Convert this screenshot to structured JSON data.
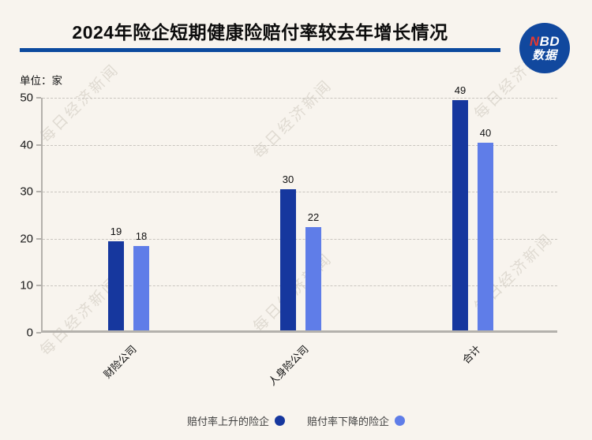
{
  "header": {
    "title": "2024年险企短期健康险赔付率较去年增长情况",
    "logo": {
      "line1_red": "N",
      "line1_rest": "BD",
      "line2": "数据"
    }
  },
  "unit_label": "单位：家",
  "watermark": "每日经济新闻",
  "colors": {
    "background": "#f8f4ee",
    "divider_blue": "#0c4a9e",
    "logo_circle_blue": "#11489e",
    "logo_n_red": "#e8392f",
    "bar_up_dark_blue": "#16379e",
    "bar_down_light_blue": "#5f7de8",
    "axis_gray": "#b4b1ac",
    "gridline_gray": "#c9c5bf"
  },
  "chart_data": {
    "type": "bar",
    "title": "2024年险企短期健康险赔付率较去年增长情况",
    "unit": "单位：家",
    "categories": [
      "财险公司",
      "人身险公司",
      "合计"
    ],
    "series": [
      {
        "name": "赔付率上升的险企",
        "values": [
          19,
          30,
          49
        ],
        "color": "#16379e"
      },
      {
        "name": "赔付率下降的险企",
        "values": [
          18,
          22,
          40
        ],
        "color": "#5f7de8"
      }
    ],
    "ylim": [
      0,
      50
    ],
    "yticks": [
      0,
      10,
      20,
      30,
      40,
      50
    ],
    "grid": "horizontal-dashed",
    "legend_position": "bottom"
  }
}
